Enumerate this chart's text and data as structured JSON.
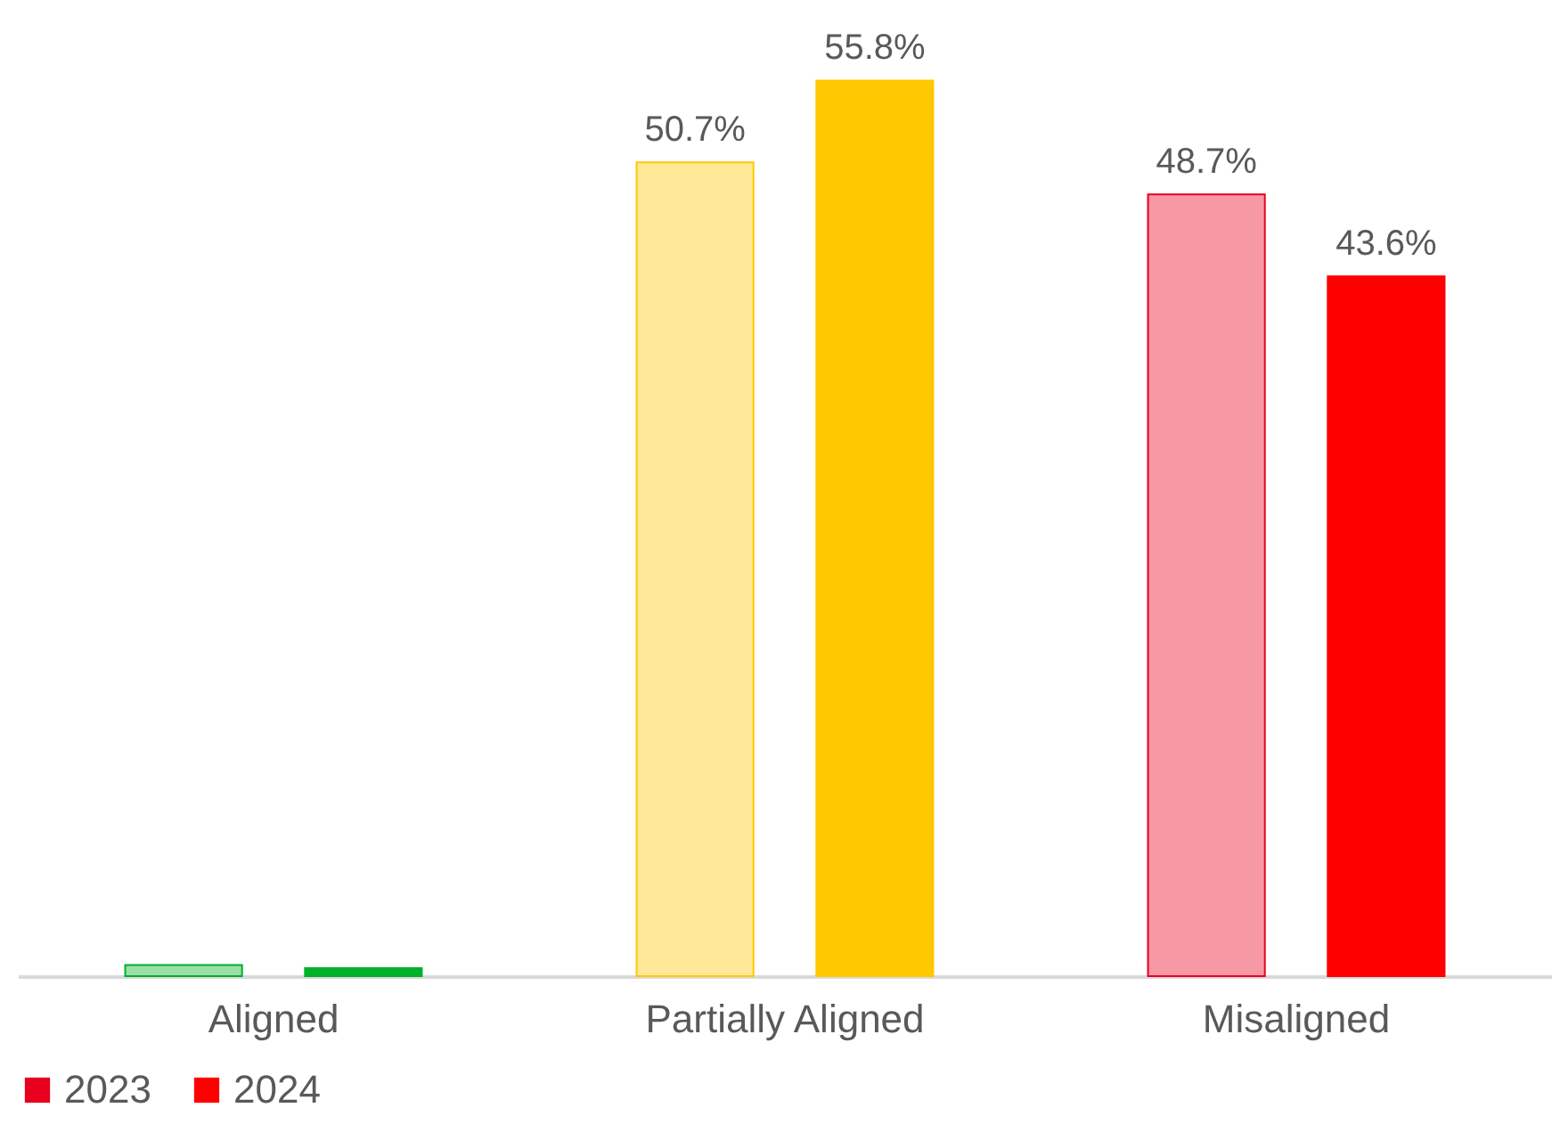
{
  "chart_data": {
    "type": "bar",
    "categories": [
      "Aligned",
      "Partially Aligned",
      "Misaligned"
    ],
    "series": [
      {
        "name": "2023",
        "colors": [
          "#00b02a",
          "#ffc800",
          "#e8001e"
        ],
        "values": [
          0.7,
          50.7,
          48.7
        ],
        "value_labels": [
          null,
          "50.7%",
          "48.7%"
        ]
      },
      {
        "name": "2024",
        "colors": [
          "#00b02a",
          "#ffc800",
          "#ff0000"
        ],
        "values": [
          0.5,
          55.8,
          43.6
        ],
        "value_labels": [
          null,
          "55.8%",
          "43.6%"
        ]
      }
    ],
    "legend": "bottom"
  }
}
